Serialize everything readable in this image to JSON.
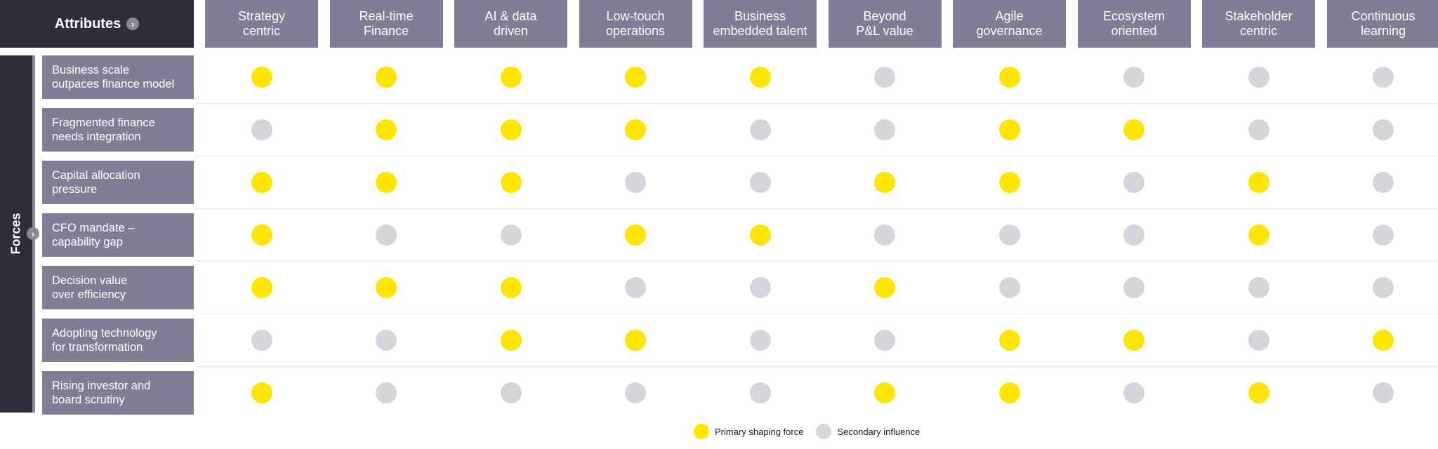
{
  "header": {
    "attributes_label": "Attributes"
  },
  "side": {
    "forces_label": "Forces"
  },
  "colors": {
    "primary": "#ffe600",
    "secondary": "#d5d5db"
  },
  "columns": [
    "Strategy\ncentric",
    "Real-time\nFinance",
    "AI & data\ndriven",
    "Low-touch\noperations",
    "Business\nembedded talent",
    "Beyond\nP&L value",
    "Agile\ngovernance",
    "Ecosystem\noriented",
    "Stakeholder\ncentric",
    "Continuous\nlearning"
  ],
  "rows": [
    {
      "label": "Business scale\noutpaces finance model",
      "values": [
        "P",
        "P",
        "P",
        "P",
        "P",
        "S",
        "P",
        "S",
        "S",
        "S"
      ]
    },
    {
      "label": "Fragmented finance\nneeds integration",
      "values": [
        "S",
        "P",
        "P",
        "P",
        "S",
        "S",
        "P",
        "P",
        "S",
        "S"
      ]
    },
    {
      "label": "Capital allocation\npressure",
      "values": [
        "P",
        "P",
        "P",
        "S",
        "S",
        "P",
        "P",
        "S",
        "P",
        "S"
      ]
    },
    {
      "label": "CFO mandate –\ncapability gap",
      "values": [
        "P",
        "S",
        "S",
        "P",
        "P",
        "S",
        "S",
        "S",
        "P",
        "S"
      ]
    },
    {
      "label": "Decision value\nover efficiency",
      "values": [
        "P",
        "P",
        "P",
        "S",
        "S",
        "P",
        "S",
        "S",
        "S",
        "S"
      ]
    },
    {
      "label": "Adopting technology\nfor transformation",
      "values": [
        "S",
        "S",
        "P",
        "P",
        "S",
        "S",
        "P",
        "P",
        "S",
        "P"
      ]
    },
    {
      "label": "Rising investor and\nboard scrutiny",
      "values": [
        "P",
        "S",
        "S",
        "S",
        "S",
        "P",
        "P",
        "S",
        "P",
        "S"
      ]
    }
  ],
  "legend": {
    "primary_label": "Primary shaping force",
    "secondary_label": "Secondary influence"
  }
}
